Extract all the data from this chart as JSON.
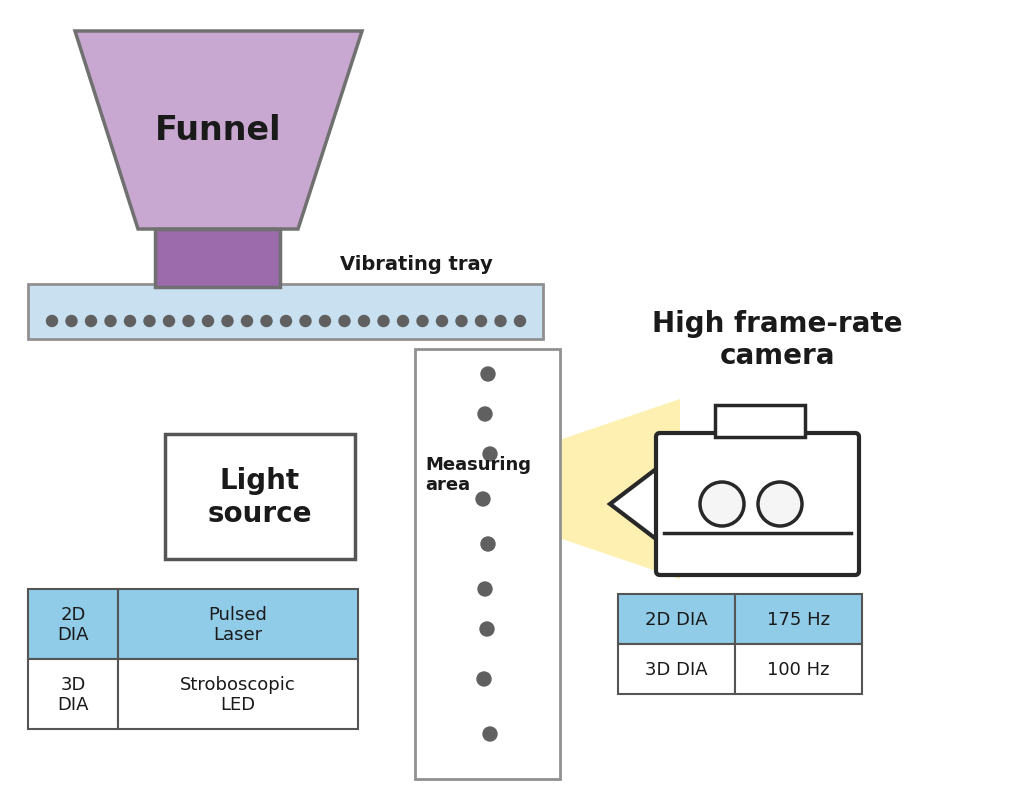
{
  "bg_color": "#ffffff",
  "funnel_color": "#c8a8d0",
  "funnel_edge": "#707070",
  "funnel_neck_color": "#9b6bab",
  "tray_color": "#c8e0f0",
  "tray_edge": "#909090",
  "particle_color": "#606060",
  "beam_color": "#fdf0b0",
  "light_box_color": "#ffffff",
  "light_box_edge": "#555555",
  "camera_color": "#ffffff",
  "camera_edge": "#282828",
  "table_blue_color": "#90cce8",
  "table_border": "#555555",
  "table_white": "#ffffff",
  "funnel_text": "Funnel",
  "tray_text": "Vibrating tray",
  "measuring_text": "Measuring\narea",
  "light_text": "Light\nsource",
  "camera_text": "High frame-rate\ncamera",
  "row1_col1": "2D\nDIA",
  "row1_col2": "Pulsed\nLaser",
  "row2_col1": "3D\nDIA",
  "row2_col2": "Stroboscopic\nLED",
  "freq_row1_col1": "2D DIA",
  "freq_row1_col2": "175 Hz",
  "freq_row2_col1": "3D DIA",
  "freq_row2_col2": "100 Hz"
}
